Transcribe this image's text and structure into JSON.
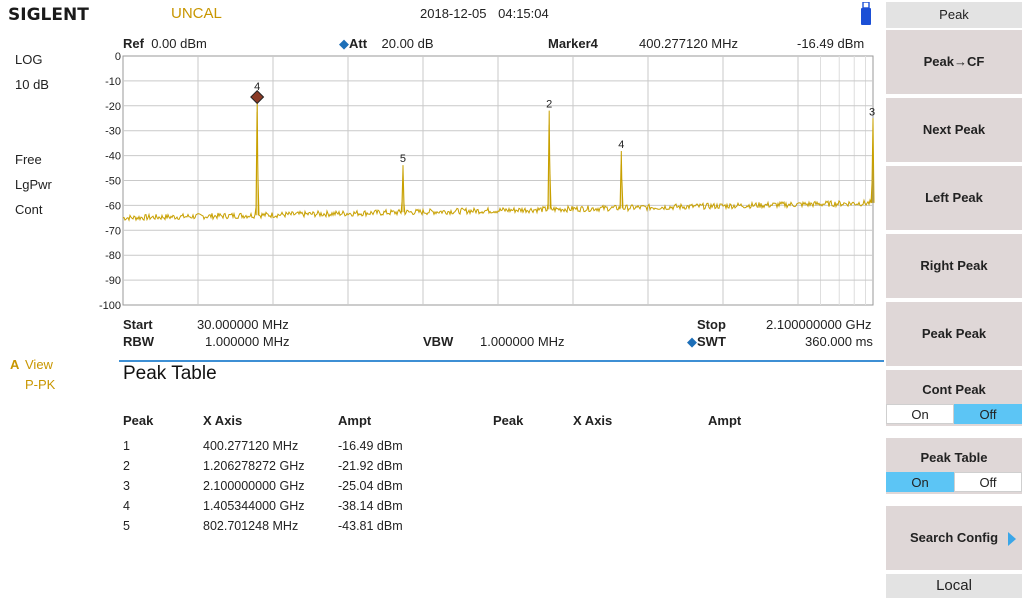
{
  "status_bar": {
    "brand": "SIGLENT",
    "uncal": "UNCAL",
    "date": "2018-12-05",
    "time": "04:15:04"
  },
  "left_panel": {
    "scale_type": "LOG",
    "scale_div": "10 dB",
    "trigger": "Free",
    "detector": "LgPwr",
    "sweep_mode": "Cont",
    "trace_letter": "A",
    "trace_mode": "View",
    "trace_detector": "P-PK"
  },
  "graph_header": {
    "ref_label": "Ref",
    "ref_value": "0.00 dBm",
    "att_label": "Att",
    "att_value": "20.00 dB",
    "marker_label": "Marker4",
    "marker_freq": "400.277120 MHz",
    "marker_ampl": "-16.49 dBm"
  },
  "graph_footer": {
    "start_label": "Start",
    "start_value": "30.000000 MHz",
    "stop_label": "Stop",
    "stop_value": "2.100000000 GHz",
    "rbw_label": "RBW",
    "rbw_value": "1.000000 MHz",
    "vbw_label": "VBW",
    "vbw_value": "1.000000 MHz",
    "swt_label": "SWT",
    "swt_value": "360.000 ms"
  },
  "chart_data": {
    "type": "line",
    "xlabel": "",
    "ylabel": "",
    "x_range_mhz": [
      30,
      2100
    ],
    "ylim": [
      -100,
      0
    ],
    "y_ticks": [
      "0",
      "-10",
      "-20",
      "-30",
      "-40",
      "-50",
      "-60",
      "-70",
      "-80",
      "-90",
      "-100"
    ],
    "grid": true,
    "trace_color": "#c8a000",
    "noise_floor_start_db": -65,
    "noise_floor_end_db": -59,
    "peaks": [
      {
        "label": "4",
        "freq_mhz": 400.27712,
        "ampl_db": -16.49,
        "is_active_marker": true
      },
      {
        "label": "5",
        "freq_mhz": 802.701248,
        "ampl_db": -43.81,
        "is_active_marker": false
      },
      {
        "label": "2",
        "freq_mhz": 1206.278272,
        "ampl_db": -21.92,
        "is_active_marker": false
      },
      {
        "label": "4",
        "freq_mhz": 1405.344,
        "ampl_db": -38.14,
        "is_active_marker": false
      },
      {
        "label": "3",
        "freq_mhz": 2100.0,
        "ampl_db": -25.04,
        "is_active_marker": false
      }
    ]
  },
  "peak_table": {
    "title": "Peak Table",
    "headers": [
      "Peak",
      "X Axis",
      "Ampt",
      "Peak",
      "X Axis",
      "Ampt"
    ],
    "rows": [
      {
        "peak": "1",
        "x": "400.277120 MHz",
        "ampt": "-16.49 dBm"
      },
      {
        "peak": "2",
        "x": "1.206278272 GHz",
        "ampt": "-21.92 dBm"
      },
      {
        "peak": "3",
        "x": "2.100000000 GHz",
        "ampt": "-25.04 dBm"
      },
      {
        "peak": "4",
        "x": "1.405344000 GHz",
        "ampt": "-38.14 dBm"
      },
      {
        "peak": "5",
        "x": "802.701248 MHz",
        "ampt": "-43.81 dBm"
      }
    ]
  },
  "menu": {
    "title": "Peak",
    "peak_to_cf": "Peak→CF",
    "next_peak": "Next Peak",
    "left_peak": "Left Peak",
    "right_peak": "Right Peak",
    "peak_peak": "Peak Peak",
    "cont_peak": "Cont Peak",
    "cont_peak_on": "On",
    "cont_peak_off": "Off",
    "peak_table": "Peak Table",
    "peak_table_on": "On",
    "peak_table_off": "Off",
    "search_config": "Search Config",
    "local": "Local"
  },
  "colors": {
    "accent_blue": "#5cc5f5",
    "trace": "#c8a000",
    "softkey_bg": "#dfd7d7"
  }
}
